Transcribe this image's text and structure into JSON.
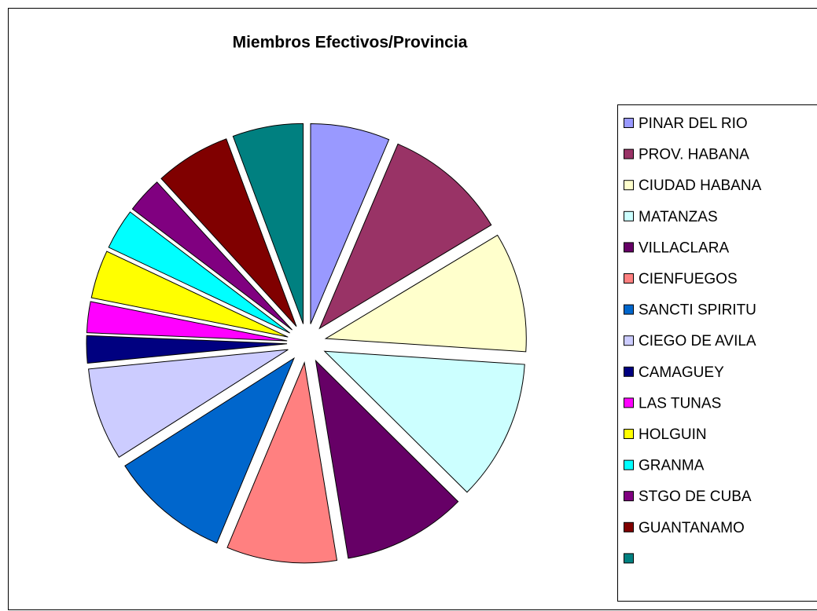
{
  "chart_data": {
    "type": "pie",
    "title": "Miembros Efectivos/Provincia",
    "categories": [
      "PINAR DEL RIO",
      "PROV. HABANA",
      "CIUDAD HABANA",
      "MATANZAS",
      "VILLACLARA",
      "CIENFUEGOS",
      "SANCTI SPIRITU",
      "CIEGO DE AVILA",
      "CAMAGUEY",
      "LAS TUNAS",
      "HOLGUIN",
      "GRANMA",
      "STGO DE CUBA",
      "GUANTANAMO",
      null
    ],
    "values": [
      6.4,
      10,
      9.7,
      11.4,
      10,
      8.9,
      9.7,
      7.5,
      2.2,
      2.5,
      3.9,
      3.3,
      2.9,
      6.1,
      5.7
    ],
    "colors": [
      "#9999FF",
      "#993366",
      "#FFFFCC",
      "#CCFFFF",
      "#660066",
      "#FF8080",
      "#0066CC",
      "#CCCCFF",
      "#000080",
      "#FF00FF",
      "#FFFF00",
      "#00FFFF",
      "#800080",
      "#800000",
      "#008080"
    ],
    "legend": "right",
    "exploded": true
  }
}
